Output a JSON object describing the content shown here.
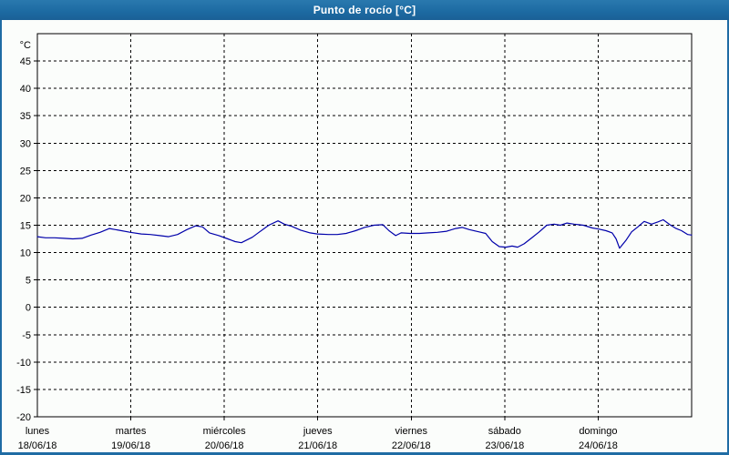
{
  "window": {
    "title": "Punto de rocío [°C]"
  },
  "colors": {
    "frame": "#1f6ca4",
    "titlebar_text": "#ffffff",
    "canvas_bg": "#fbfdfb",
    "line": "#0000aa",
    "grid": "#000000",
    "axis": "#000000",
    "label_text": "#000000"
  },
  "chart_data": {
    "type": "line",
    "title": "Punto de rocío [°C]",
    "ylabel": "°C",
    "ylim": [
      -20,
      50
    ],
    "ytick_step": 5,
    "ytick_labels": [
      "45",
      "40",
      "35",
      "30",
      "25",
      "20",
      "15",
      "10",
      "5",
      "0",
      "-5",
      "-10",
      "-15",
      "-20"
    ],
    "grid": "dashed",
    "legend": "none",
    "x_axis": {
      "unit": "hours_from_monday_00",
      "range": [
        0,
        168
      ],
      "day_tick_hours": [
        24,
        48,
        72,
        96,
        120,
        144
      ]
    },
    "days": [
      {
        "name": "lunes",
        "date": "18/06/18"
      },
      {
        "name": "martes",
        "date": "19/06/18"
      },
      {
        "name": "miércoles",
        "date": "20/06/18"
      },
      {
        "name": "jueves",
        "date": "21/06/18"
      },
      {
        "name": "viernes",
        "date": "22/06/18"
      },
      {
        "name": "sábado",
        "date": "23/06/18"
      },
      {
        "name": "domingo",
        "date": "24/06/18"
      }
    ],
    "series": [
      {
        "name": "Punto de rocío",
        "color": "#0000aa",
        "points": [
          [
            0,
            12.9
          ],
          [
            2.1,
            12.7
          ],
          [
            4.4,
            12.7
          ],
          [
            6.8,
            12.6
          ],
          [
            9.1,
            12.5
          ],
          [
            11.5,
            12.6
          ],
          [
            13.8,
            13.2
          ],
          [
            16.1,
            13.7
          ],
          [
            18.5,
            14.4
          ],
          [
            20.8,
            14.1
          ],
          [
            23.9,
            13.7
          ],
          [
            26.7,
            13.4
          ],
          [
            29,
            13.3
          ],
          [
            31.4,
            13.1
          ],
          [
            33.7,
            12.9
          ],
          [
            36,
            13.3
          ],
          [
            38.4,
            14.2
          ],
          [
            40.7,
            14.9
          ],
          [
            42.4,
            14.7
          ],
          [
            44.2,
            13.6
          ],
          [
            46.6,
            13.1
          ],
          [
            48.9,
            12.5
          ],
          [
            50.8,
            12
          ],
          [
            52.4,
            11.8
          ],
          [
            55.2,
            12.8
          ],
          [
            57.1,
            13.8
          ],
          [
            59.4,
            15
          ],
          [
            61.8,
            15.8
          ],
          [
            63.4,
            15.2
          ],
          [
            65.3,
            14.8
          ],
          [
            67.6,
            14.1
          ],
          [
            70,
            13.6
          ],
          [
            71.9,
            13.4
          ],
          [
            74.7,
            13.3
          ],
          [
            77,
            13.3
          ],
          [
            79.3,
            13.5
          ],
          [
            81.7,
            14
          ],
          [
            84,
            14.6
          ],
          [
            86.4,
            15
          ],
          [
            88.7,
            15.1
          ],
          [
            90.3,
            14
          ],
          [
            92,
            13.1
          ],
          [
            93.4,
            13.6
          ],
          [
            95.7,
            13.5
          ],
          [
            98.1,
            13.5
          ],
          [
            100.4,
            13.6
          ],
          [
            102.7,
            13.7
          ],
          [
            105.1,
            13.9
          ],
          [
            107.4,
            14.4
          ],
          [
            109.1,
            14.6
          ],
          [
            110.9,
            14.2
          ],
          [
            113.3,
            13.8
          ],
          [
            115.1,
            13.5
          ],
          [
            116.8,
            12
          ],
          [
            118.6,
            11.1
          ],
          [
            120.3,
            11
          ],
          [
            121.9,
            11.2
          ],
          [
            123.3,
            11
          ],
          [
            125,
            11.6
          ],
          [
            126.8,
            12.6
          ],
          [
            128.9,
            13.8
          ],
          [
            130.8,
            15
          ],
          [
            132.7,
            15.2
          ],
          [
            134.3,
            15
          ],
          [
            136,
            15.4
          ],
          [
            137.8,
            15.2
          ],
          [
            140.2,
            15
          ],
          [
            142.5,
            14.5
          ],
          [
            144.1,
            14.3
          ],
          [
            146,
            14
          ],
          [
            147.6,
            13.6
          ],
          [
            148.6,
            12.5
          ],
          [
            149.5,
            10.8
          ],
          [
            151.2,
            12.3
          ],
          [
            152.6,
            13.8
          ],
          [
            154.2,
            14.7
          ],
          [
            155.8,
            15.7
          ],
          [
            157.7,
            15.2
          ],
          [
            159.3,
            15.6
          ],
          [
            160.7,
            16
          ],
          [
            162.4,
            15.1
          ],
          [
            164,
            14.4
          ],
          [
            165.4,
            14
          ],
          [
            167,
            13.3
          ],
          [
            168,
            13.2
          ]
        ]
      }
    ]
  }
}
